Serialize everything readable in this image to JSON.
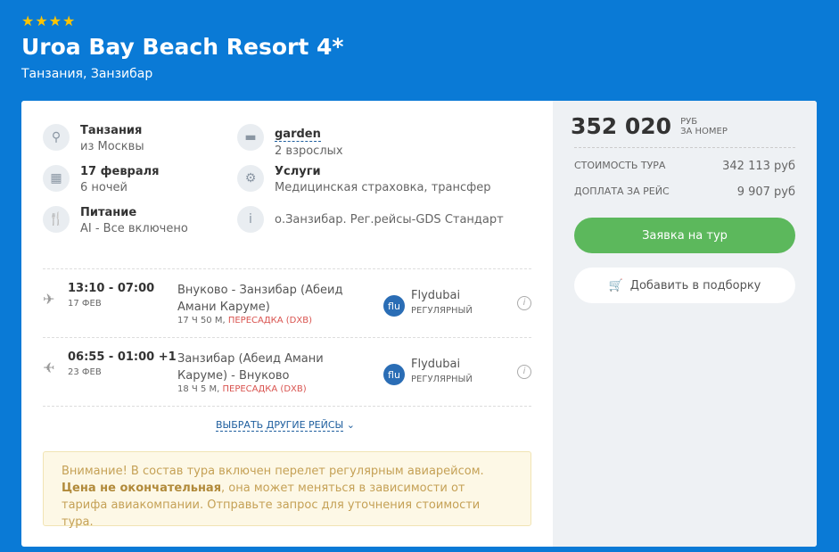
{
  "hotel": {
    "stars": 4,
    "stars_text": "★★★★",
    "name": "Uroa Bay Beach Resort 4*",
    "location": "Танзания, Занзибар"
  },
  "info": [
    {
      "icon": "location-icon",
      "glyph": "⚲",
      "title": "Танзания",
      "sub": "из Москвы"
    },
    {
      "icon": "bed-icon",
      "glyph": "▬",
      "title": "garden",
      "sub": "2 взрослых"
    },
    {
      "icon": "calendar-icon",
      "glyph": "▦",
      "title": "17 февраля",
      "sub": "6 ночей"
    },
    {
      "icon": "gear-icon",
      "glyph": "⚙",
      "title": "Услуги",
      "sub": "Медицинская страховка, трансфер"
    },
    {
      "icon": "fork-knife-icon",
      "glyph": "🍴",
      "title": "Питание",
      "sub": "AI - Все включено"
    },
    {
      "icon": "info-icon",
      "glyph": "i",
      "title": "",
      "sub": "о.Занзибар. Рег.рейсы-GDS Стандарт"
    }
  ],
  "flights": [
    {
      "time": "13:10 - 07:00",
      "date": "17 ФЕВ",
      "route": "Внуково - Занзибар (Абеид Амани Каруме)",
      "duration": "17 Ч 50 М,",
      "transfer": "ПЕРЕСАДКА (DXB)",
      "logo": "flu",
      "airline": "Flydubai",
      "type": "РЕГУЛЯРНЫЙ"
    },
    {
      "time": "06:55 - 01:00 +1",
      "date": "23 ФЕВ",
      "route": "Занзибар (Абеид Амани Каруме) - Внуково",
      "duration": "18 Ч 5 М,",
      "transfer": "ПЕРЕСАДКА (DXB)",
      "logo": "flu",
      "airline": "Flydubai",
      "type": "РЕГУЛЯРНЫЙ"
    }
  ],
  "more_flights": "ВЫБРАТЬ ДРУГИЕ РЕЙСЫ",
  "warning": {
    "p1": "Внимание! В состав тура включен перелет регулярным авиарейсом.",
    "bold": "Цена не окончательная",
    "p2": ", она может меняться в зависимости от тарифа авиакомпании. Отправьте запрос для уточнения стоимости тура."
  },
  "price": {
    "total": "352 020",
    "unit1": "РУБ",
    "unit2": "ЗА НОМЕР",
    "tour_label": "СТОИМОСТЬ ТУРА",
    "tour_value": "342 113 руб",
    "extra_label": "ДОПЛАТА ЗА РЕЙС",
    "extra_value": "9 907 руб",
    "order": "Заявка на тур",
    "add": "Добавить в подборку"
  },
  "colors": {
    "brand": "#0a7ad6",
    "green": "#5cb85c",
    "warn": "#fdf8e6"
  }
}
